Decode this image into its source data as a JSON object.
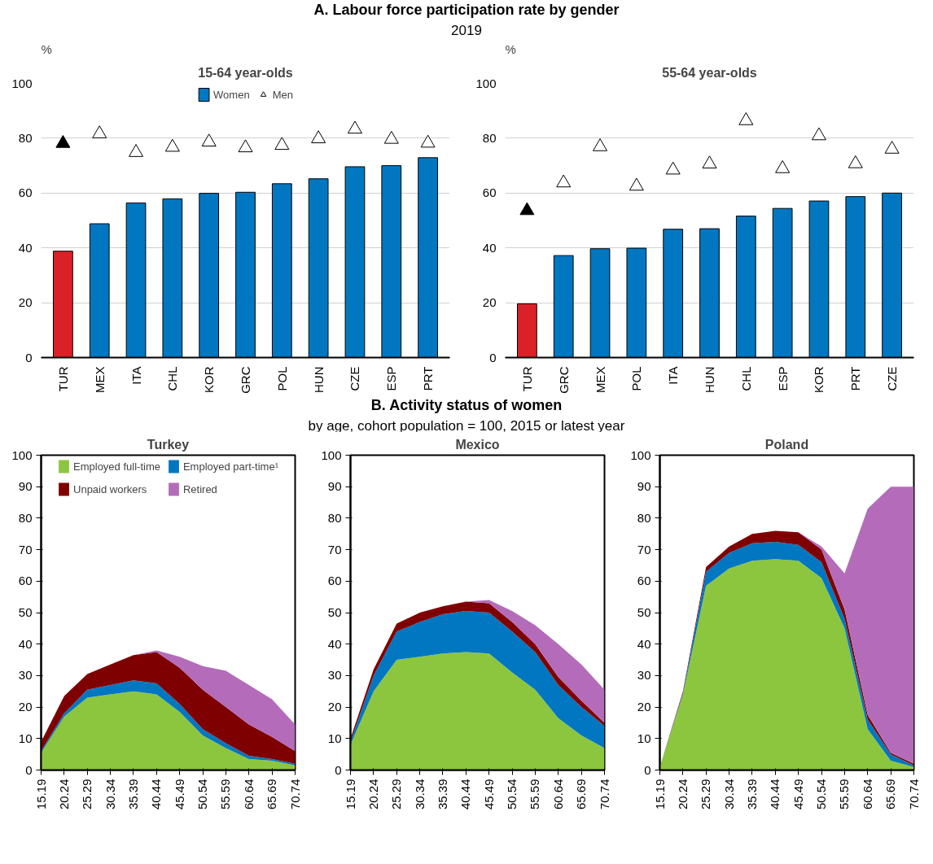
{
  "chart_data": [
    {
      "type": "bar",
      "title": "A. Labour force participation rate by gender",
      "subtitle": "2019",
      "annotations": [
        "15-64 year-olds"
      ],
      "ylabel": "%",
      "categories": [
        "TUR",
        "MEX",
        "ITA",
        "CHL",
        "KOR",
        "GRC",
        "POL",
        "HUN",
        "CZE",
        "ESP",
        "PRT"
      ],
      "ylim": [
        0,
        100
      ],
      "yticks": [
        0,
        20,
        40,
        60,
        80,
        100
      ],
      "grid": "y",
      "legend": "top",
      "series": [
        {
          "name": "Women",
          "type": "bar",
          "color": "#0077c0",
          "colors": [
            "#da2128",
            "#0077c0",
            "#0077c0",
            "#0077c0",
            "#0077c0",
            "#0077c0",
            "#0077c0",
            "#0077c0",
            "#0077c0",
            "#0077c0",
            "#0077c0"
          ],
          "values": [
            38.8,
            48.8,
            56.4,
            57.9,
            59.9,
            60.3,
            63.4,
            65.2,
            69.6,
            70.0,
            72.9
          ]
        },
        {
          "name": "Men",
          "type": "scatter",
          "marker": "triangle",
          "color": "#ffffff",
          "colors": [
            "#000000",
            "#ffffff",
            "#ffffff",
            "#ffffff",
            "#ffffff",
            "#ffffff",
            "#ffffff",
            "#ffffff",
            "#ffffff",
            "#ffffff",
            "#ffffff"
          ],
          "values": [
            78.1,
            81.6,
            74.8,
            76.7,
            78.6,
            76.5,
            77.4,
            79.8,
            83.3,
            79.6,
            78.2
          ]
        }
      ]
    },
    {
      "type": "bar",
      "annotations": [
        "55-64 year-olds"
      ],
      "ylabel": "%",
      "categories": [
        "TUR",
        "GRC",
        "MEX",
        "POL",
        "ITA",
        "HUN",
        "CHL",
        "ESP",
        "KOR",
        "PRT",
        "CZE"
      ],
      "ylim": [
        0,
        100
      ],
      "yticks": [
        0,
        20,
        40,
        60,
        80,
        100
      ],
      "grid": "y",
      "series": [
        {
          "type": "bar",
          "color": "#0077c0",
          "colors": [
            "#da2128",
            "#0077c0",
            "#0077c0",
            "#0077c0",
            "#0077c0",
            "#0077c0",
            "#0077c0",
            "#0077c0",
            "#0077c0",
            "#0077c0",
            "#0077c0"
          ],
          "values": [
            19.6,
            37.2,
            39.7,
            39.9,
            46.8,
            47.0,
            51.6,
            54.4,
            57.1,
            58.7,
            60.0
          ]
        },
        {
          "type": "scatter",
          "marker": "triangle",
          "color": "#ffffff",
          "colors": [
            "#000000",
            "#ffffff",
            "#ffffff",
            "#ffffff",
            "#ffffff",
            "#ffffff",
            "#ffffff",
            "#ffffff",
            "#ffffff",
            "#ffffff",
            "#ffffff"
          ],
          "values": [
            53.6,
            63.7,
            76.9,
            62.5,
            68.4,
            70.6,
            86.4,
            68.9,
            80.9,
            70.7,
            76.0
          ]
        }
      ]
    },
    {
      "type": "area",
      "stacked": true,
      "annotations": [
        "Turkey"
      ],
      "categories": [
        "15.19",
        "20.24",
        "25.29",
        "30.34",
        "35.39",
        "40.44",
        "45.49",
        "50.54",
        "55.59",
        "60.64",
        "65.69",
        "70.74"
      ],
      "ylim": [
        0,
        100
      ],
      "yticks": [
        0,
        10,
        20,
        30,
        40,
        50,
        60,
        70,
        80,
        90,
        100
      ],
      "legend": "top",
      "series": [
        {
          "name": "Employed full-time",
          "color": "#8cc63f",
          "values": [
            5.5,
            17,
            23,
            24,
            25,
            24,
            18.5,
            11,
            7,
            3.5,
            3,
            1.5
          ]
        },
        {
          "name": "Employed part-time¹",
          "color": "#0077c0",
          "values": [
            0.5,
            1,
            2.5,
            3,
            3.5,
            3.5,
            2.5,
            2,
            1.5,
            1,
            0.5,
            0.5
          ]
        },
        {
          "name": "Unpaid workers",
          "color": "#7f0000",
          "values": [
            3,
            5.5,
            5,
            6.5,
            8,
            10,
            11.5,
            12.5,
            11.5,
            10,
            7,
            4
          ]
        },
        {
          "name": "Retired",
          "color": "#b46cba",
          "values": [
            0,
            0,
            0,
            0,
            0,
            0.5,
            3.5,
            7.5,
            11.5,
            12.5,
            12,
            8.5
          ]
        }
      ]
    },
    {
      "type": "area",
      "stacked": true,
      "title": "B. Activity status of women",
      "subtitle": "by age, cohort population = 100, 2015 or latest year",
      "annotations": [
        "Mexico"
      ],
      "categories": [
        "15.19",
        "20.24",
        "25.29",
        "30.34",
        "35.39",
        "40.44",
        "45.49",
        "50.54",
        "55.59",
        "60.64",
        "65.69",
        "70.74"
      ],
      "ylim": [
        0,
        100
      ],
      "yticks": [
        0,
        10,
        20,
        30,
        40,
        50,
        60,
        70,
        80,
        90,
        100
      ],
      "series": [
        {
          "color": "#8cc63f",
          "values": [
            8,
            25,
            35,
            36,
            37,
            37.5,
            37,
            31,
            25.5,
            16.5,
            11,
            7
          ]
        },
        {
          "color": "#0077c0",
          "values": [
            1,
            5,
            9,
            11,
            12.5,
            13,
            13,
            13,
            12,
            10.5,
            9,
            7
          ]
        },
        {
          "color": "#7f0000",
          "values": [
            1,
            2,
            2.5,
            3,
            2.5,
            3,
            3,
            3,
            2.5,
            2.5,
            2,
            1
          ]
        },
        {
          "color": "#b46cba",
          "values": [
            0,
            0,
            0,
            0,
            0,
            0,
            1,
            3.5,
            6,
            10.5,
            11.5,
            10.5
          ]
        }
      ]
    },
    {
      "type": "area",
      "stacked": true,
      "annotations": [
        "Poland"
      ],
      "categories": [
        "15.19",
        "20.24",
        "25.29",
        "30.34",
        "35.39",
        "40.44",
        "45.49",
        "50.54",
        "55.59",
        "60.64",
        "65.69",
        "70.74"
      ],
      "ylim": [
        0,
        100
      ],
      "yticks": [
        0,
        10,
        20,
        30,
        40,
        50,
        60,
        70,
        80,
        90,
        100
      ],
      "series": [
        {
          "color": "#8cc63f",
          "values": [
            1,
            24,
            58.5,
            64,
            66.5,
            67,
            66.5,
            61,
            45,
            13,
            3,
            1
          ]
        },
        {
          "color": "#0077c0",
          "values": [
            0,
            0.5,
            4.5,
            5,
            5.5,
            5.5,
            5,
            5,
            3,
            3,
            2,
            0.5
          ]
        },
        {
          "color": "#7f0000",
          "values": [
            0,
            0.5,
            1.5,
            2,
            3,
            3.5,
            4,
            4,
            3,
            1.5,
            0.5,
            0.5
          ]
        },
        {
          "color": "#b46cba",
          "values": [
            0,
            0,
            0,
            0,
            0,
            0,
            0,
            1,
            11.5,
            65.5,
            84.5,
            88
          ]
        }
      ]
    }
  ]
}
